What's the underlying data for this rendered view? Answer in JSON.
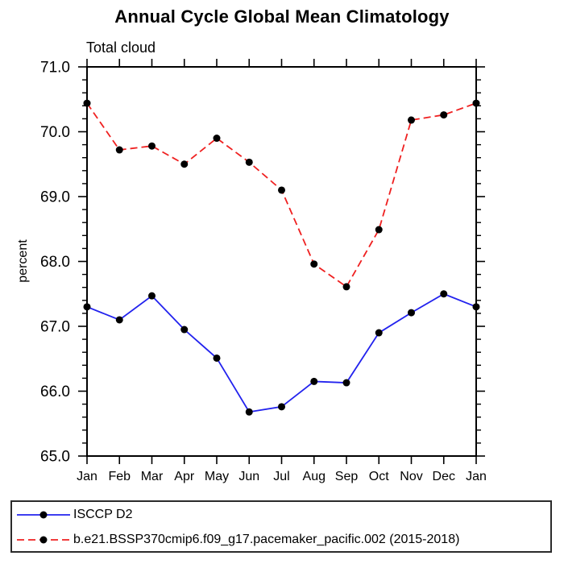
{
  "page": {
    "background": "#ffffff"
  },
  "chart_data": {
    "type": "line",
    "title": "Annual Cycle Global Mean Climatology",
    "subtitle": "Total cloud",
    "xlabel": "",
    "ylabel": "percent",
    "categories": [
      "Jan",
      "Feb",
      "Mar",
      "Apr",
      "May",
      "Jun",
      "Jul",
      "Aug",
      "Sep",
      "Oct",
      "Nov",
      "Dec",
      "Jan"
    ],
    "ylim": [
      65.0,
      71.0
    ],
    "ytick_interval": 1.0,
    "ytick_minor_interval": 0.2,
    "ytick_labels": [
      "65.0",
      "66.0",
      "67.0",
      "68.0",
      "69.0",
      "70.0",
      "71.0"
    ],
    "grid": false,
    "legend_position": "bottom-left-box",
    "marker": {
      "shape": "circle",
      "color": "#000000",
      "radius": 4.5
    },
    "axis_color": "#000000",
    "legend_border_color": "#2b2b2b",
    "series": [
      {
        "name": "ISCCP D2",
        "color": "#2222ee",
        "line_style": "solid",
        "values": [
          67.3,
          67.1,
          67.47,
          66.95,
          66.51,
          65.68,
          65.76,
          66.15,
          66.13,
          66.9,
          67.21,
          67.5,
          67.3
        ]
      },
      {
        "name": "b.e21.BSSP370cmip6.f09_g17.pacemaker_pacific.002 (2015-2018)",
        "color": "#ef2020",
        "line_style": "dashed",
        "values": [
          70.44,
          69.72,
          69.78,
          69.5,
          69.9,
          69.53,
          69.1,
          67.96,
          67.61,
          68.49,
          70.18,
          70.26,
          70.44
        ]
      }
    ]
  }
}
